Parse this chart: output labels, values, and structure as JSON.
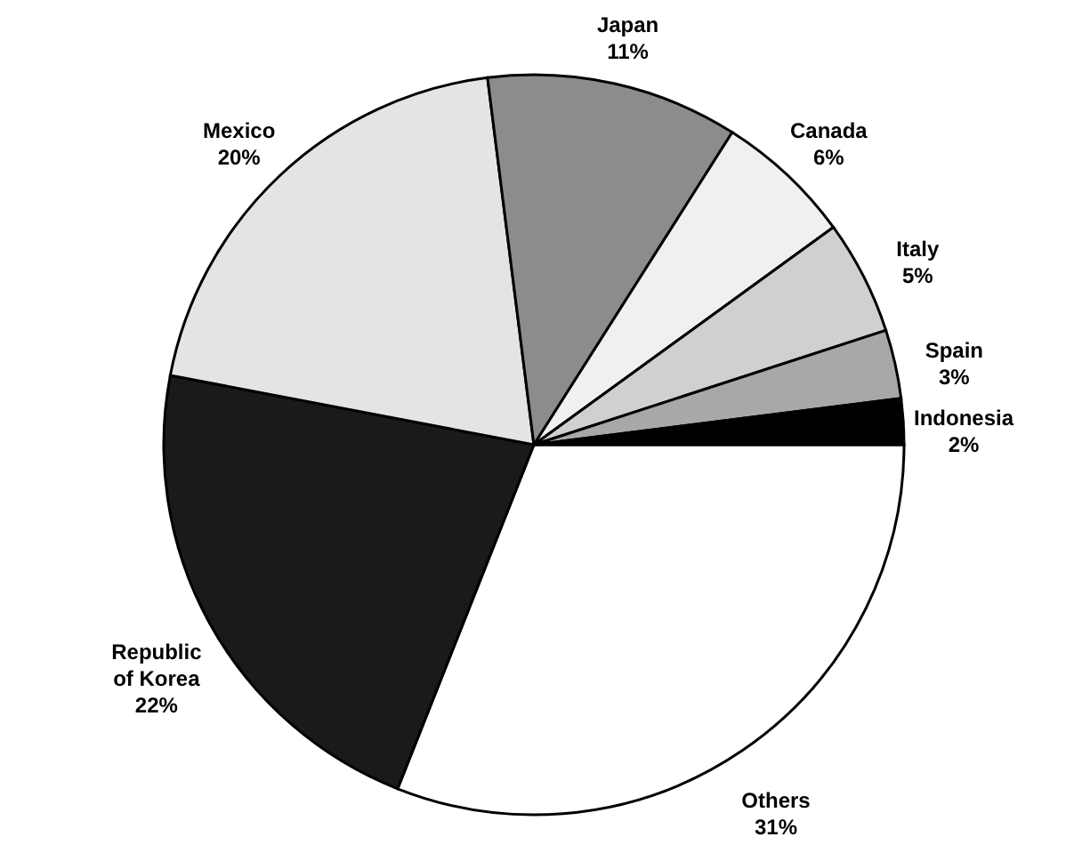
{
  "chart_data": {
    "type": "pie",
    "categories": [
      "Others",
      "Republic of Korea",
      "Mexico",
      "Japan",
      "Canada",
      "Italy",
      "Spain",
      "Indonesia"
    ],
    "values": [
      31,
      22,
      20,
      11,
      6,
      5,
      3,
      2
    ],
    "value_labels": [
      "31%",
      "22%",
      "20%",
      "11%",
      "6%",
      "5%",
      "3%",
      "2%"
    ],
    "colors": [
      "#ffffff",
      "#1a1a1a",
      "#e4e4e4",
      "#8c8c8c",
      "#f0f0f0",
      "#d0d0d0",
      "#a8a8a8",
      "#000000"
    ]
  }
}
